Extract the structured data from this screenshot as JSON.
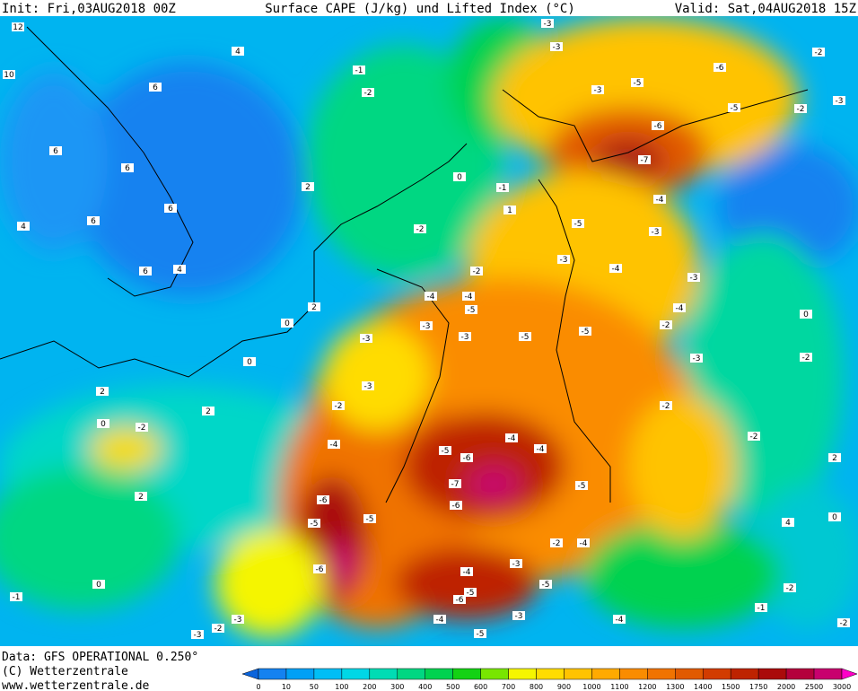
{
  "header": {
    "init": "Init: Fri,03AUG2018 00Z",
    "title": "Surface CAPE (J/kg) und Lifted Index (°C)",
    "valid": "Valid: Sat,04AUG2018 15Z"
  },
  "footer": {
    "data": "Data: GFS OPERATIONAL 0.250°",
    "copyright": "(C) Wetterzentrale",
    "url": "www.wetterzentrale.de"
  },
  "colorbar": {
    "labels": [
      0,
      10,
      50,
      100,
      200,
      300,
      400,
      500,
      600,
      700,
      800,
      900,
      1000,
      1100,
      1200,
      1300,
      1400,
      1500,
      1750,
      2000,
      2500,
      3000
    ],
    "colors": [
      "#0a64dc",
      "#1482f0",
      "#00a0f5",
      "#00bef5",
      "#00d7e6",
      "#00dcb4",
      "#00d782",
      "#00d250",
      "#14d214",
      "#78e600",
      "#f5f500",
      "#ffdc00",
      "#ffc300",
      "#ffaa00",
      "#fa8c00",
      "#f07300",
      "#e15a00",
      "#d23c00",
      "#be2300",
      "#aa0a0a",
      "#b4003c",
      "#c8006e",
      "#e6009b",
      "#ff00c8"
    ]
  },
  "lifted_index_labels": [
    12,
    10,
    4,
    6,
    6,
    6,
    6,
    6,
    4,
    6,
    4,
    2,
    2,
    0,
    -1,
    -2,
    0,
    -1,
    -2,
    1,
    -3,
    -3,
    -3,
    -5,
    -6,
    -2,
    -3,
    -2,
    -5,
    -6,
    -7,
    -4,
    -3,
    -5,
    -3,
    -4,
    -3,
    -4,
    -2,
    0,
    -2,
    -3,
    -2,
    -2,
    2,
    4,
    0,
    -2,
    -1,
    -2,
    -4,
    -5,
    -3,
    -3,
    -5,
    -5,
    -2,
    -4,
    -3,
    -2,
    -3,
    -6,
    -5,
    -6,
    -5,
    -4,
    -5,
    -6,
    -7,
    -6,
    -4,
    -4,
    -5,
    -5,
    -6,
    -4,
    -4,
    -5,
    -3,
    -3,
    -5,
    -2,
    -4,
    -4,
    -3,
    -3,
    -2,
    -1,
    0,
    2,
    2,
    -2,
    2,
    0,
    0
  ]
}
